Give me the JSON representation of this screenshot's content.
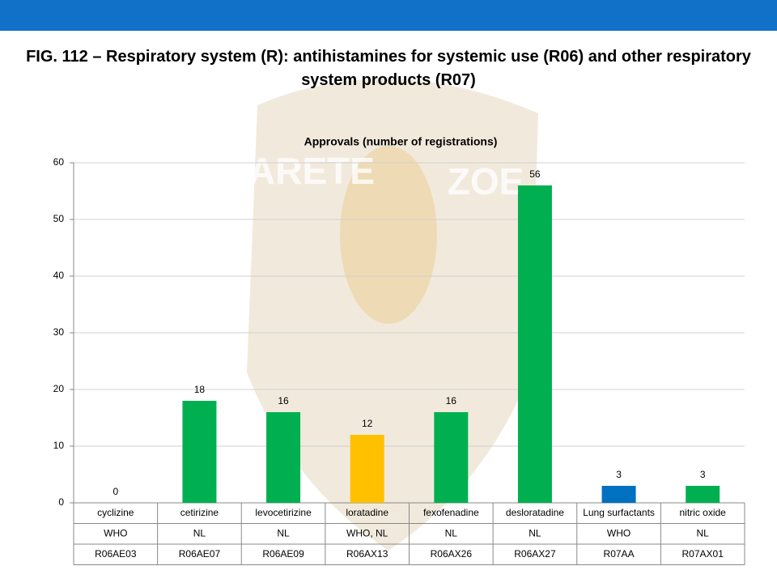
{
  "chart_data": {
    "type": "bar",
    "title": "FIG. 112 – Respiratory system (R): antihistamines for systemic use (R06) and other respiratory system products (R07)",
    "subtitle": "Approvals (number of registrations)",
    "watermark": [
      "ARETE",
      "ZOE"
    ],
    "categories": [
      "cyclizine",
      "cetirizine",
      "levocetirizine",
      "loratadine",
      "fexofenadine",
      "desloratadine",
      "Lung surfactants",
      "nitric oxide"
    ],
    "category_rows": [
      [
        "WHO",
        "NL",
        "NL",
        "WHO, NL",
        "NL",
        "NL",
        "WHO",
        "NL"
      ],
      [
        "R06AE03",
        "R06AE07",
        "R06AE09",
        "R06AX13",
        "R06AX26",
        "R06AX27",
        "R07AA",
        "R07AX01"
      ]
    ],
    "values": [
      0,
      18,
      16,
      12,
      16,
      56,
      3,
      3
    ],
    "colors": [
      "#00b050",
      "#00b050",
      "#00b050",
      "#ffc000",
      "#00b050",
      "#00b050",
      "#0070c0",
      "#00b050"
    ],
    "ylim": [
      0,
      60
    ],
    "yticks": [
      0,
      10,
      20,
      30,
      40,
      50,
      60
    ],
    "grid": true
  }
}
